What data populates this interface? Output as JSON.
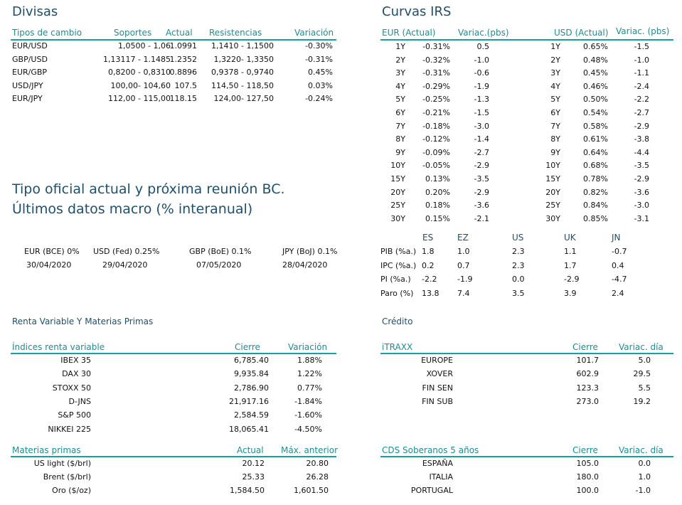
{
  "divisas": {
    "title": "Divisas",
    "headers": [
      "Tipos de cambio",
      "Soportes",
      "Actual",
      "Resistencias",
      "Variación"
    ],
    "rows": [
      [
        "EUR/USD",
        "1,0500 - 1,06",
        "1.0991",
        "1,1410 - 1,1500",
        "-0.30%"
      ],
      [
        "GBP/USD",
        "1,13117 - 1.1485",
        "1.2352",
        "1,3220- 1,3350",
        "-0.31%"
      ],
      [
        "EUR/GBP",
        "0,8200 - 0,8310",
        "0.8896",
        "0,9378 - 0,9740",
        "0.45%"
      ],
      [
        "USD/JPY",
        "100,00- 104,60",
        "107.5",
        "114,50 - 118,50",
        "0.03%"
      ],
      [
        "EUR/JPY",
        "112,00 - 115,00",
        "118.15",
        "124,00- 127,50",
        "-0.24%"
      ]
    ]
  },
  "curvas": {
    "title": "Curvas IRS",
    "headers": [
      "EUR (Actual)",
      "Variac.(pbs)",
      "USD (Actual)",
      "Variac. (pbs)"
    ],
    "rows": [
      [
        "1Y",
        "-0.31%",
        "0.5",
        "1Y",
        "0.65%",
        "-1.5"
      ],
      [
        "2Y",
        "-0.32%",
        "-1.0",
        "2Y",
        "0.48%",
        "-1.0"
      ],
      [
        "3Y",
        "-0.31%",
        "-0.6",
        "3Y",
        "0.45%",
        "-1.1"
      ],
      [
        "4Y",
        "-0.29%",
        "-1.9",
        "4Y",
        "0.46%",
        "-2.4"
      ],
      [
        "5Y",
        "-0.25%",
        "-1.3",
        "5Y",
        "0.50%",
        "-2.2"
      ],
      [
        "6Y",
        "-0.21%",
        "-1.5",
        "6Y",
        "0.54%",
        "-2.7"
      ],
      [
        "7Y",
        "-0.18%",
        "-3.0",
        "7Y",
        "0.58%",
        "-2.9"
      ],
      [
        "8Y",
        "-0.12%",
        "-1.4",
        "8Y",
        "0.61%",
        "-3.8"
      ],
      [
        "9Y",
        "-0.09%",
        "-2.7",
        "9Y",
        "0.64%",
        "-4.4"
      ],
      [
        "10Y",
        "-0.05%",
        "-2.9",
        "10Y",
        "0.68%",
        "-3.5"
      ],
      [
        "15Y",
        "0.13%",
        "-3.5",
        "15Y",
        "0.78%",
        "-2.9"
      ],
      [
        "20Y",
        "0.20%",
        "-2.9",
        "20Y",
        "0.82%",
        "-3.6"
      ],
      [
        "25Y",
        "0.18%",
        "-3.6",
        "25Y",
        "0.84%",
        "-3.0"
      ],
      [
        "30Y",
        "0.15%",
        "-2.1",
        "30Y",
        "0.85%",
        "-3.1"
      ]
    ]
  },
  "tipo_oficial": {
    "title_line1": "Tipo oficial actual y próxima reunión BC.",
    "title_line2": "Últimos datos macro (% interanual)",
    "rates": [
      {
        "label": "EUR (BCE) 0%",
        "date": "30/04/2020"
      },
      {
        "label": "USD (Fed) 0.25%",
        "date": "29/04/2020"
      },
      {
        "label": "GBP (BoE) 0.1%",
        "date": "07/05/2020"
      },
      {
        "label": "JPY (BoJ) 0.1%",
        "date": "28/04/2020"
      }
    ]
  },
  "macro": {
    "headers": [
      "ES",
      "EZ",
      "US",
      "UK",
      "JN"
    ],
    "rows": [
      [
        "PIB (%a.)",
        "1.8",
        "1.0",
        "2.3",
        "1.1",
        "-0.7"
      ],
      [
        "IPC (%a.)",
        "0.2",
        "0.7",
        "2.3",
        "1.7",
        "0.4"
      ],
      [
        "PI (%a.)",
        "-2.2",
        "-1.9",
        "0.0",
        "-2.9",
        "-4.7"
      ],
      [
        "Paro (%)",
        "13.8",
        "7.4",
        "3.5",
        "3.9",
        "2.4"
      ]
    ]
  },
  "renta": {
    "section_title": "Renta Variable Y Materias Primas",
    "headers": [
      "Índices renta variable",
      "Cierre",
      "Variación"
    ],
    "rows": [
      [
        "IBEX 35",
        "6,785.40",
        "1.88%"
      ],
      [
        "DAX 30",
        "9,935.84",
        "1.22%"
      ],
      [
        "STOXX 50",
        "2,786.90",
        "0.77%"
      ],
      [
        "D-JNS",
        "21,917.16",
        "-1.84%"
      ],
      [
        "S&P 500",
        "2,584.59",
        "-1.60%"
      ],
      [
        "NIKKEI 225",
        "18,065.41",
        "-4.50%"
      ]
    ]
  },
  "materias": {
    "headers": [
      "Materias primas",
      "Actual",
      "Máx. anterior"
    ],
    "rows": [
      [
        "US light ($/brl)",
        "20.12",
        "20.80"
      ],
      [
        "Brent ($/brl)",
        "25.33",
        "26.28"
      ],
      [
        "Oro ($/oz)",
        "1,584.50",
        "1,601.50"
      ]
    ]
  },
  "credito": {
    "section_title": "Crédito",
    "headers": [
      "iTRAXX",
      "Cierre",
      "Variac. día"
    ],
    "rows": [
      [
        "EUROPE",
        "101.7",
        "5.0"
      ],
      [
        "XOVER",
        "602.9",
        "29.5"
      ],
      [
        "FIN SEN",
        "123.3",
        "5.5"
      ],
      [
        "FIN SUB",
        "273.0",
        "19.2"
      ]
    ]
  },
  "cds": {
    "headers": [
      "CDS Soberanos 5 años",
      "Cierre",
      "Variac. día"
    ],
    "rows": [
      [
        "ESPAÑA",
        "105.0",
        "0.0"
      ],
      [
        "ITALIA",
        "180.0",
        "1.0"
      ],
      [
        "PORTUGAL",
        "100.0",
        "-1.0"
      ]
    ]
  },
  "colors": {
    "title": "#1d4f6e",
    "header": "#1a8f95",
    "rule": "#16a0a5"
  }
}
